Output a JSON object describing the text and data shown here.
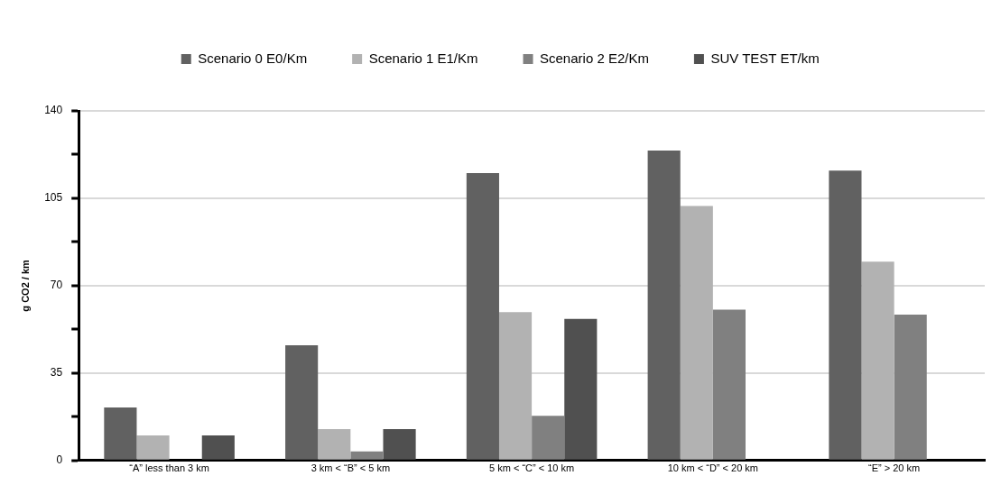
{
  "chart_data": {
    "type": "bar",
    "ylabel": "g CO2 / km",
    "categories": [
      "“A” less than 3 km",
      "3 km < “B” < 5 km",
      "5 km < “C” < 10 km",
      "10 km < “D” < 20 km",
      "“E” > 20 km"
    ],
    "series": [
      {
        "name": "Scenario 0 E0/Km",
        "color": "#616161",
        "values": [
          21.2,
          46.1,
          115.1,
          124.1,
          116.1
        ]
      },
      {
        "name": "Scenario 1 E1/Km",
        "color": "#b2b2b2",
        "values": [
          10,
          12.6,
          59.4,
          101.9,
          79.6
        ]
      },
      {
        "name": "Scenario 2 E2/Km",
        "color": "#808080",
        "values": [
          null,
          3.6,
          17.9,
          60.4,
          58.4
        ]
      },
      {
        "name": "SUV TEST ET/km",
        "color": "#505050",
        "values": [
          10,
          12.6,
          56.7,
          null,
          null
        ]
      }
    ],
    "ylim": [
      0,
      140
    ],
    "yticks": [
      0,
      {
        "value": 17.5,
        "label": null
      },
      35,
      {
        "value": 52.5,
        "label": null
      },
      70,
      {
        "value": 87.5,
        "label": null
      },
      105,
      {
        "value": 122.5,
        "label": null
      },
      140
    ],
    "grid": "y",
    "legend": "top"
  }
}
